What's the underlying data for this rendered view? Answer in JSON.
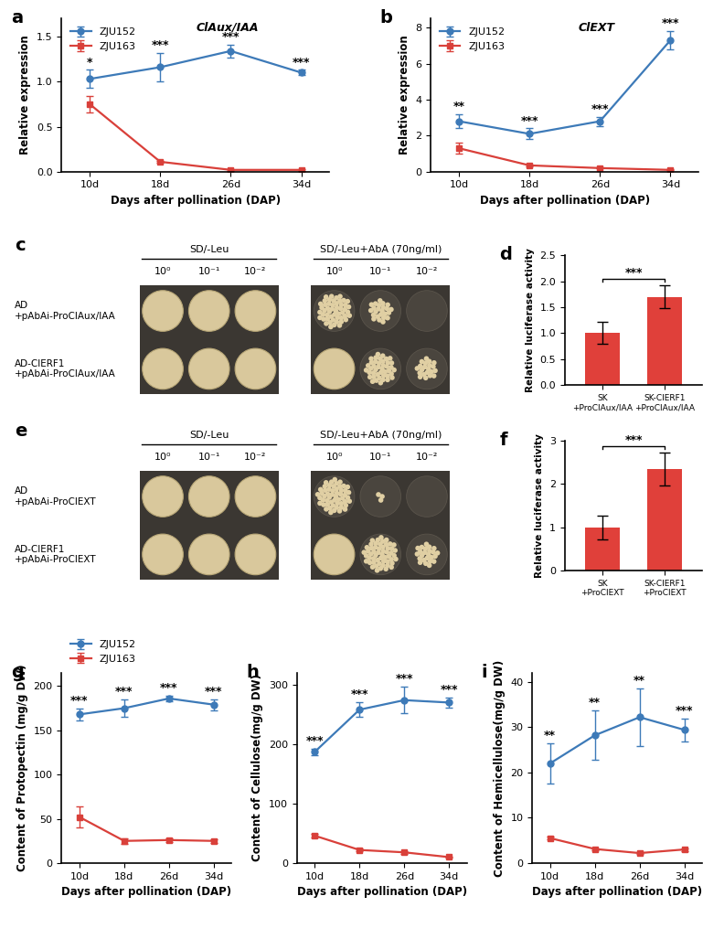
{
  "chart_data": [
    {
      "type": "line",
      "panel_label": "a",
      "title": "ClAux/IAA",
      "x_label": "Days after pollination (DAP)",
      "y_label": "Relative expression",
      "categories": [
        "10d",
        "18d",
        "26d",
        "34d"
      ],
      "ylim": [
        0,
        1.7
      ],
      "yticks": [
        {
          "value": 0,
          "label": "0.0"
        },
        {
          "value": 0.5,
          "label": "0.5"
        },
        {
          "value": 1.0,
          "label": "1.0"
        },
        {
          "value": 1.5,
          "label": "1.5"
        }
      ],
      "legend": "upper left",
      "series": [
        {
          "name": "ZJU152",
          "color": "#3d7ab8",
          "marker": "o",
          "values": [
            1.03,
            1.16,
            1.34,
            1.1
          ],
          "errors": [
            0.1,
            0.16,
            0.07,
            0.03
          ]
        },
        {
          "name": "ZJU163",
          "color": "#d9403a",
          "marker": "s",
          "values": [
            0.75,
            0.11,
            0.02,
            0.02
          ],
          "errors": [
            0.09,
            0.01,
            0.01,
            0.01
          ]
        }
      ],
      "annotations": [
        "*",
        "***",
        "***",
        "***"
      ]
    },
    {
      "type": "line",
      "panel_label": "b",
      "title": "ClEXT",
      "x_label": "Days after pollination (DAP)",
      "y_label": "Relative expression",
      "categories": [
        "10d",
        "18d",
        "26d",
        "34d"
      ],
      "ylim": [
        0,
        8.5
      ],
      "yticks": [
        0,
        2,
        4,
        6,
        8
      ],
      "legend": "upper left",
      "series": [
        {
          "name": "ZJU152",
          "color": "#3d7ab8",
          "marker": "o",
          "values": [
            2.8,
            2.1,
            2.8,
            7.3
          ],
          "errors": [
            0.4,
            0.3,
            0.25,
            0.5
          ]
        },
        {
          "name": "ZJU163",
          "color": "#d9403a",
          "marker": "s",
          "values": [
            1.3,
            0.35,
            0.2,
            0.1
          ],
          "errors": [
            0.3,
            0.05,
            0.03,
            0.02
          ]
        }
      ],
      "annotations": [
        "**",
        "***",
        "***",
        "***"
      ]
    },
    {
      "type": "spot_assay",
      "panel_label": "c",
      "column_groups": [
        {
          "label": "SD/-Leu",
          "dilutions": [
            "10⁰",
            "10⁻¹",
            "10⁻²"
          ]
        },
        {
          "label": "SD/-Leu+AbA (70ng/ml)",
          "dilutions": [
            "10⁰",
            "10⁻¹",
            "10⁻²"
          ]
        }
      ],
      "rows": [
        "AD\n+pAbAi-ProClAux/IAA",
        "AD-ClERF1\n+pAbAi-ProClAux/IAA"
      ],
      "growth": [
        [
          1,
          1,
          1,
          0.85,
          0.4,
          0
        ],
        [
          1,
          1,
          1,
          1,
          0.7,
          0.35
        ]
      ]
    },
    {
      "type": "bar",
      "panel_label": "d",
      "y_label": "Relative luciferase activity",
      "categories": [
        "SK\n+ProClAux/IAA",
        "SK-ClERF1\n+ProClAux/IAA"
      ],
      "values": [
        1.0,
        1.7
      ],
      "errors": [
        0.21,
        0.22
      ],
      "color": "#e0403a",
      "ylim": [
        0,
        2.5
      ],
      "yticks": [
        {
          "value": 0,
          "label": "0.0"
        },
        {
          "value": 0.5,
          "label": "0.5"
        },
        {
          "value": 1.0,
          "label": "1.0"
        },
        {
          "value": 1.5,
          "label": "1.5"
        },
        {
          "value": 2.0,
          "label": "2.0"
        },
        {
          "value": 2.5,
          "label": "2.5"
        }
      ],
      "significance": "***"
    },
    {
      "type": "spot_assay",
      "panel_label": "e",
      "column_groups": [
        {
          "label": "SD/-Leu",
          "dilutions": [
            "10⁰",
            "10⁻¹",
            "10⁻²"
          ]
        },
        {
          "label": "SD/-Leu+AbA (70ng/ml)",
          "dilutions": [
            "10⁰",
            "10⁻¹",
            "10⁻²"
          ]
        }
      ],
      "rows": [
        "AD\n+pAbAi-ProClEXT",
        "AD-ClERF1\n+pAbAi-ProClEXT"
      ],
      "growth": [
        [
          1,
          1,
          1,
          0.9,
          0.05,
          0
        ],
        [
          1,
          1,
          1,
          1,
          0.9,
          0.4
        ]
      ]
    },
    {
      "type": "bar",
      "panel_label": "f",
      "y_label": "Relative luciferase activity",
      "categories": [
        "SK\n+ProClEXT",
        "SK-ClERF1\n+ProClEXT"
      ],
      "values": [
        1.0,
        2.35
      ],
      "errors": [
        0.27,
        0.38
      ],
      "color": "#e0403a",
      "ylim": [
        0,
        3
      ],
      "yticks": [
        0,
        1,
        2,
        3
      ],
      "significance": "***"
    },
    {
      "type": "line",
      "panel_label": "g",
      "x_label": "Days after pollination (DAP)",
      "y_label": "Content of Protopectin (mg/g DW)",
      "categories": [
        "10d",
        "18d",
        "26d",
        "34d"
      ],
      "ylim": [
        0,
        215
      ],
      "yticks": [
        0,
        50,
        100,
        150,
        200
      ],
      "legend": "upper left",
      "series": [
        {
          "name": "ZJU152",
          "color": "#3d7ab8",
          "marker": "o",
          "values": [
            168,
            175,
            186,
            179
          ],
          "errors": [
            7,
            10,
            3,
            6
          ]
        },
        {
          "name": "ZJU163",
          "color": "#d9403a",
          "marker": "s",
          "values": [
            52,
            25,
            26,
            25
          ],
          "errors": [
            12,
            3,
            2,
            2
          ]
        }
      ],
      "annotations": [
        "***",
        "***",
        "***",
        "***"
      ]
    },
    {
      "type": "line",
      "panel_label": "h",
      "x_label": "Days after pollination (DAP)",
      "y_label": "Content of Cellulose(mg/g DW)",
      "categories": [
        "10d",
        "18d",
        "26d",
        "34d"
      ],
      "ylim": [
        0,
        320
      ],
      "yticks": [
        0,
        100,
        200,
        300
      ],
      "series": [
        {
          "name": "ZJU152",
          "color": "#3d7ab8",
          "marker": "o",
          "values": [
            187,
            258,
            274,
            270
          ],
          "errors": [
            5,
            12,
            22,
            8
          ]
        },
        {
          "name": "ZJU163",
          "color": "#d9403a",
          "marker": "s",
          "values": [
            46,
            22,
            18,
            10
          ],
          "errors": [
            3,
            2,
            2,
            1
          ]
        }
      ],
      "annotations": [
        "***",
        "***",
        "***",
        "***"
      ]
    },
    {
      "type": "line",
      "panel_label": "i",
      "x_label": "Days after pollination (DAP)",
      "y_label": "Content of Hemicellulose(mg/g DW)",
      "categories": [
        "10d",
        "18d",
        "26d",
        "34d"
      ],
      "ylim": [
        0,
        42
      ],
      "yticks": [
        0,
        10,
        20,
        30,
        40
      ],
      "series": [
        {
          "name": "ZJU152",
          "color": "#3d7ab8",
          "marker": "o",
          "values": [
            22.0,
            28.2,
            32.2,
            29.4
          ],
          "errors": [
            4.5,
            5.5,
            6.3,
            2.5
          ]
        },
        {
          "name": "ZJU163",
          "color": "#d9403a",
          "marker": "s",
          "values": [
            5.5,
            3.1,
            2.2,
            3.0
          ],
          "errors": [
            0.3,
            0.2,
            0.2,
            0.3
          ]
        }
      ],
      "annotations": [
        "**",
        "**",
        "**",
        "***"
      ]
    }
  ]
}
